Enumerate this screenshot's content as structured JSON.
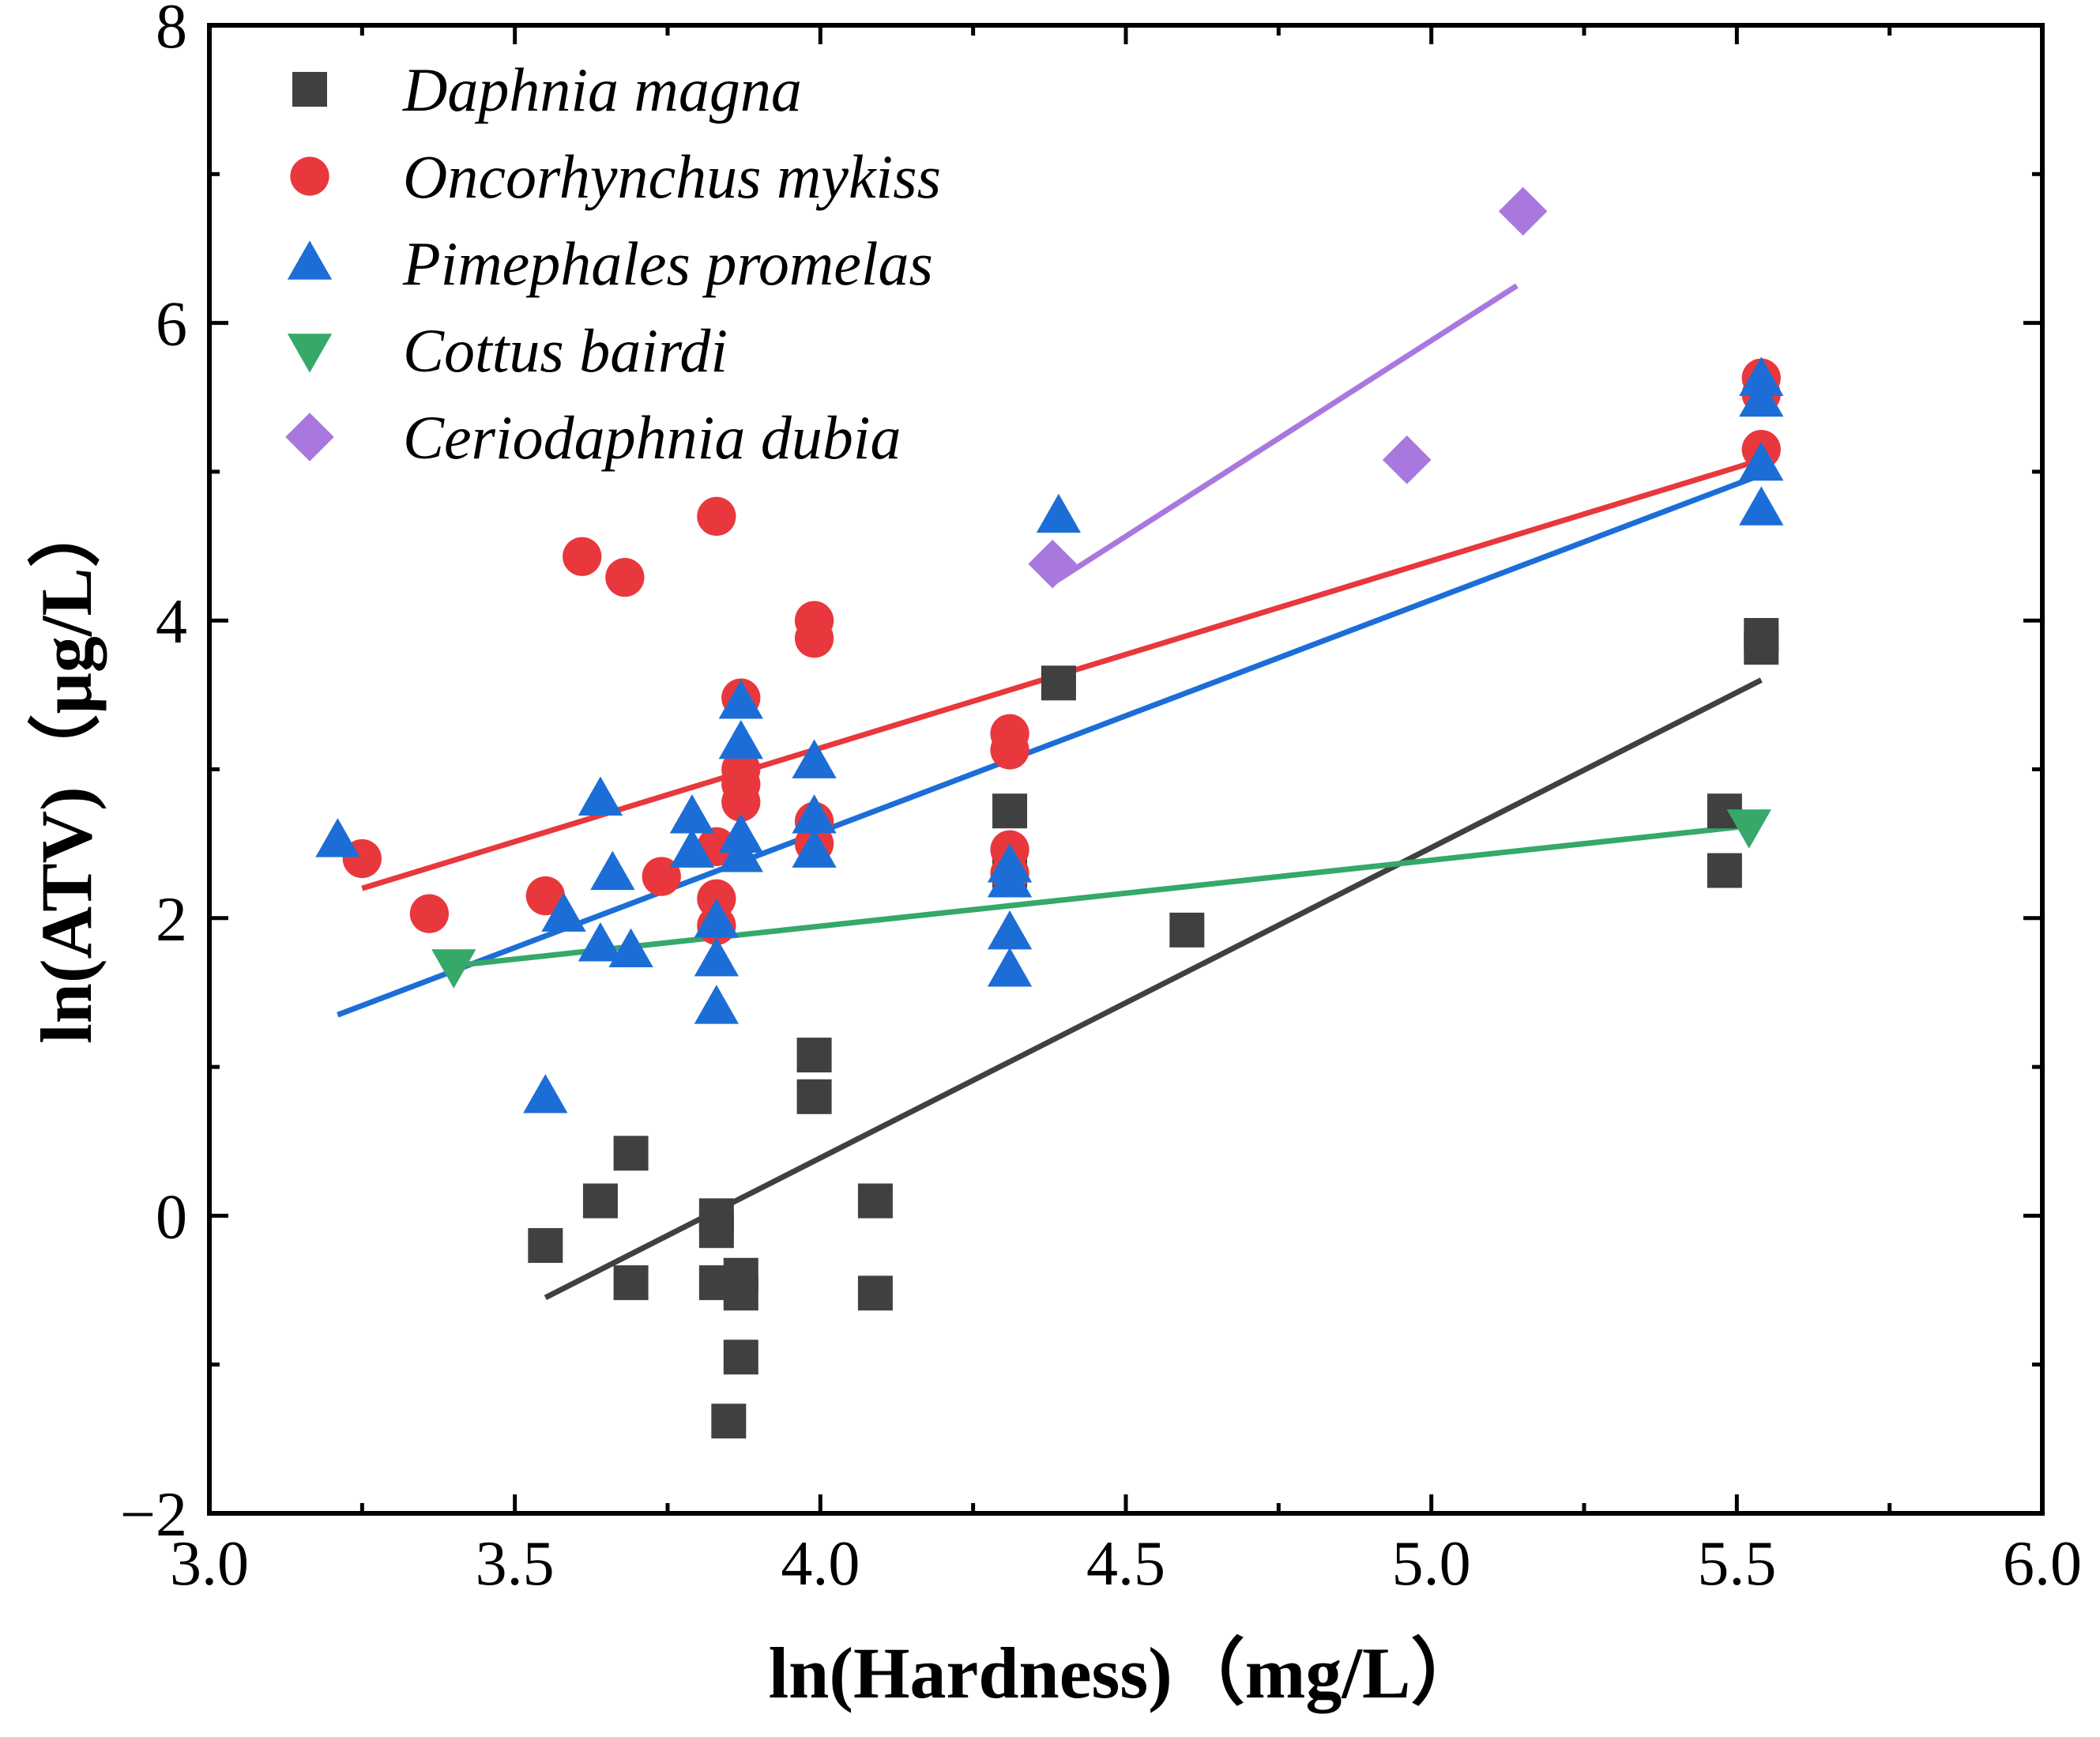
{
  "chart_data": {
    "type": "scatter",
    "title": "",
    "xlabel": "ln(Hardness)（mg/L）",
    "ylabel": "ln(ATV)（μg/L）",
    "xlim": [
      3.0,
      6.0
    ],
    "ylim": [
      -2,
      8
    ],
    "xticks": [
      3.0,
      3.5,
      4.0,
      4.5,
      5.0,
      5.5,
      6.0
    ],
    "xtick_labels": [
      "3.0",
      "3.5",
      "4.0",
      "4.5",
      "5.0",
      "5.5",
      "6.0"
    ],
    "yticks": [
      -2,
      0,
      2,
      4,
      6,
      8
    ],
    "ytick_labels": [
      "−2",
      "0",
      "2",
      "4",
      "6",
      "8"
    ],
    "grid": false,
    "legend_position": "top-left",
    "series": [
      {
        "name": "Daphnia magna",
        "marker": "square",
        "color": "#404040",
        "points": [
          [
            3.55,
            -0.2
          ],
          [
            3.64,
            0.1
          ],
          [
            3.69,
            0.42
          ],
          [
            3.69,
            -0.45
          ],
          [
            3.83,
            0.0
          ],
          [
            3.83,
            -0.1
          ],
          [
            3.83,
            -0.45
          ],
          [
            3.87,
            -0.4
          ],
          [
            3.87,
            -0.52
          ],
          [
            3.87,
            -0.95
          ],
          [
            3.85,
            -1.38
          ],
          [
            3.99,
            1.08
          ],
          [
            3.99,
            0.8
          ],
          [
            4.09,
            0.1
          ],
          [
            4.09,
            -0.52
          ],
          [
            4.31,
            2.72
          ],
          [
            4.31,
            2.32
          ],
          [
            4.39,
            3.58
          ],
          [
            4.6,
            1.92
          ],
          [
            5.48,
            2.72
          ],
          [
            5.48,
            2.32
          ],
          [
            5.54,
            3.9
          ],
          [
            5.54,
            3.82
          ]
        ],
        "fit": [
          [
            3.55,
            -0.55
          ],
          [
            5.54,
            3.6
          ]
        ]
      },
      {
        "name": "Oncorhynchus mykiss",
        "marker": "circle",
        "color": "#e8383d",
        "points": [
          [
            3.25,
            2.4
          ],
          [
            3.36,
            2.03
          ],
          [
            3.55,
            2.15
          ],
          [
            3.61,
            4.43
          ],
          [
            3.68,
            4.29
          ],
          [
            3.74,
            2.28
          ],
          [
            3.83,
            4.7
          ],
          [
            3.83,
            2.48
          ],
          [
            3.83,
            2.13
          ],
          [
            3.83,
            1.95
          ],
          [
            3.87,
            3.48
          ],
          [
            3.87,
            3.0
          ],
          [
            3.87,
            2.9
          ],
          [
            3.87,
            2.78
          ],
          [
            3.99,
            4.0
          ],
          [
            3.99,
            3.88
          ],
          [
            3.99,
            2.65
          ],
          [
            3.99,
            2.5
          ],
          [
            4.31,
            3.24
          ],
          [
            4.31,
            3.13
          ],
          [
            4.31,
            2.46
          ],
          [
            4.31,
            2.3
          ],
          [
            5.54,
            5.63
          ],
          [
            5.54,
            5.52
          ],
          [
            5.54,
            5.15
          ]
        ],
        "fit": [
          [
            3.25,
            2.2
          ],
          [
            5.54,
            5.08
          ]
        ]
      },
      {
        "name": "Pimephales promelas",
        "marker": "triangle-up",
        "color": "#1c6ed6",
        "points": [
          [
            3.21,
            2.52
          ],
          [
            3.55,
            0.8
          ],
          [
            3.58,
            2.02
          ],
          [
            3.64,
            2.8
          ],
          [
            3.64,
            1.82
          ],
          [
            3.66,
            2.3
          ],
          [
            3.69,
            1.78
          ],
          [
            3.79,
            2.68
          ],
          [
            3.79,
            2.45
          ],
          [
            3.83,
            1.98
          ],
          [
            3.83,
            1.72
          ],
          [
            3.83,
            1.4
          ],
          [
            3.87,
            3.45
          ],
          [
            3.87,
            3.18
          ],
          [
            3.87,
            2.55
          ],
          [
            3.87,
            2.42
          ],
          [
            3.99,
            3.05
          ],
          [
            3.99,
            2.68
          ],
          [
            3.99,
            2.45
          ],
          [
            4.31,
            2.35
          ],
          [
            4.31,
            2.25
          ],
          [
            4.31,
            1.9
          ],
          [
            4.31,
            1.65
          ],
          [
            4.39,
            4.7
          ],
          [
            5.54,
            5.62
          ],
          [
            5.54,
            5.48
          ],
          [
            5.54,
            5.05
          ],
          [
            5.54,
            4.75
          ]
        ],
        "fit": [
          [
            3.21,
            1.35
          ],
          [
            5.54,
            4.98
          ]
        ]
      },
      {
        "name": "Cottus bairdi",
        "marker": "triangle-down",
        "color": "#35a86a",
        "points": [
          [
            3.4,
            1.68
          ],
          [
            5.52,
            2.62
          ]
        ],
        "fit": [
          [
            3.4,
            1.68
          ],
          [
            5.52,
            2.62
          ]
        ]
      },
      {
        "name": "Ceriodaphnia dubia",
        "marker": "diamond",
        "color": "#a978de",
        "points": [
          [
            4.38,
            4.38
          ],
          [
            4.96,
            5.08
          ],
          [
            5.15,
            6.75
          ]
        ],
        "fit": [
          [
            4.38,
            4.25
          ],
          [
            5.14,
            6.25
          ]
        ]
      }
    ]
  }
}
